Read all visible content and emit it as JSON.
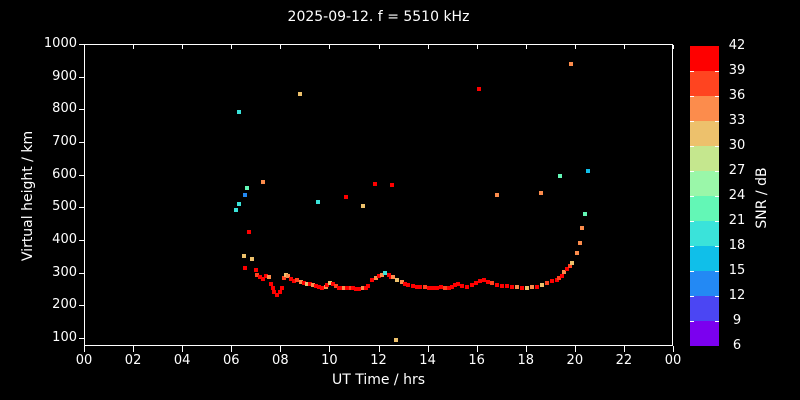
{
  "title": "2025-09-12. f = 5510 kHz",
  "chart_data": {
    "type": "scatter",
    "title": "2025-09-12. f = 5510 kHz",
    "xlabel": "UT Time / hrs",
    "ylabel": "Virtual height / km",
    "colorbar_label": "SNR / dB",
    "xlim": [
      0,
      24
    ],
    "ylim": [
      76,
      1000
    ],
    "grid": false,
    "x_tick_values": [
      0,
      2,
      4,
      6,
      8,
      10,
      12,
      14,
      16,
      18,
      20,
      22,
      24
    ],
    "x_tick_labels": [
      "00",
      "02",
      "04",
      "06",
      "08",
      "10",
      "12",
      "14",
      "16",
      "18",
      "20",
      "22",
      "00"
    ],
    "y_tick_values": [
      100,
      200,
      300,
      400,
      500,
      600,
      700,
      800,
      900,
      1000
    ],
    "y_tick_labels": [
      "100",
      "200",
      "300",
      "400",
      "500",
      "600",
      "700",
      "800",
      "900",
      "1000"
    ],
    "colorbar": {
      "min": 6,
      "max": 42,
      "step": 3,
      "tick_labels": [
        42,
        39,
        36,
        33,
        30,
        27,
        24,
        21,
        18,
        15,
        12,
        9,
        6
      ],
      "band_colors_low_to_high": [
        "#7b00ef",
        "#4b46f3",
        "#2389f4",
        "#10bfe9",
        "#3ae3da",
        "#63f7b6",
        "#9af7a9",
        "#c5e78e",
        "#edc16c",
        "#fc8c4c",
        "#ff4420",
        "#fe0000"
      ]
    },
    "points_format": [
      "ut_time_hrs",
      "virtual_height_km",
      "snr_db"
    ],
    "points": [
      [
        6.16,
        496,
        19
      ],
      [
        6.29,
        514,
        19
      ],
      [
        6.29,
        795,
        19
      ],
      [
        6.49,
        355,
        31
      ],
      [
        6.53,
        318,
        41
      ],
      [
        6.53,
        542,
        13
      ],
      [
        6.61,
        563,
        22
      ],
      [
        6.69,
        428,
        41
      ],
      [
        6.82,
        346,
        31
      ],
      [
        6.98,
        312,
        41
      ],
      [
        7.02,
        297,
        37
      ],
      [
        7.14,
        291,
        41
      ],
      [
        7.27,
        285,
        41
      ],
      [
        7.27,
        581,
        34
      ],
      [
        7.39,
        294,
        41
      ],
      [
        7.51,
        291,
        34
      ],
      [
        7.59,
        269,
        41
      ],
      [
        7.67,
        257,
        41
      ],
      [
        7.71,
        245,
        41
      ],
      [
        7.84,
        236,
        41
      ],
      [
        7.96,
        245,
        41
      ],
      [
        8.04,
        257,
        41
      ],
      [
        8.12,
        288,
        37
      ],
      [
        8.2,
        297,
        31
      ],
      [
        8.29,
        294,
        34
      ],
      [
        8.41,
        285,
        41
      ],
      [
        8.53,
        279,
        41
      ],
      [
        8.65,
        282,
        37
      ],
      [
        8.78,
        850,
        31
      ],
      [
        8.82,
        276,
        34
      ],
      [
        8.94,
        273,
        41
      ],
      [
        9.06,
        270,
        31
      ],
      [
        9.18,
        270,
        41
      ],
      [
        9.31,
        267,
        34
      ],
      [
        9.43,
        264,
        41
      ],
      [
        9.51,
        520,
        19
      ],
      [
        9.55,
        261,
        41
      ],
      [
        9.67,
        258,
        41
      ],
      [
        9.8,
        261,
        34
      ],
      [
        9.88,
        267,
        41
      ],
      [
        10.0,
        273,
        31
      ],
      [
        10.12,
        270,
        41
      ],
      [
        10.24,
        264,
        37
      ],
      [
        10.37,
        258,
        41
      ],
      [
        10.45,
        255,
        41
      ],
      [
        10.57,
        255,
        34
      ],
      [
        10.65,
        536,
        41
      ],
      [
        10.69,
        255,
        41
      ],
      [
        10.82,
        258,
        37
      ],
      [
        10.94,
        255,
        41
      ],
      [
        11.06,
        252,
        41
      ],
      [
        11.18,
        252,
        41
      ],
      [
        11.31,
        255,
        34
      ],
      [
        11.31,
        508,
        31
      ],
      [
        11.43,
        258,
        41
      ],
      [
        11.55,
        264,
        41
      ],
      [
        11.71,
        282,
        41
      ],
      [
        11.8,
        575,
        41
      ],
      [
        11.84,
        288,
        34
      ],
      [
        11.96,
        294,
        41
      ],
      [
        12.12,
        297,
        34
      ],
      [
        12.24,
        303,
        19
      ],
      [
        12.37,
        297,
        41
      ],
      [
        12.45,
        291,
        41
      ],
      [
        12.49,
        572,
        41
      ],
      [
        12.57,
        291,
        34
      ],
      [
        12.69,
        98,
        31
      ],
      [
        12.73,
        282,
        31
      ],
      [
        12.9,
        276,
        34
      ],
      [
        13.02,
        270,
        41
      ],
      [
        13.18,
        267,
        41
      ],
      [
        13.35,
        264,
        41
      ],
      [
        13.51,
        261,
        41
      ],
      [
        13.67,
        261,
        41
      ],
      [
        13.84,
        261,
        37
      ],
      [
        14.0,
        258,
        41
      ],
      [
        14.16,
        258,
        41
      ],
      [
        14.33,
        258,
        41
      ],
      [
        14.49,
        261,
        41
      ],
      [
        14.65,
        258,
        37
      ],
      [
        14.82,
        258,
        41
      ],
      [
        14.94,
        261,
        41
      ],
      [
        15.06,
        267,
        41
      ],
      [
        15.18,
        270,
        41
      ],
      [
        15.35,
        264,
        41
      ],
      [
        15.55,
        261,
        41
      ],
      [
        15.76,
        267,
        41
      ],
      [
        15.92,
        273,
        41
      ],
      [
        16.04,
        866,
        41
      ],
      [
        16.08,
        279,
        41
      ],
      [
        16.24,
        282,
        41
      ],
      [
        16.41,
        276,
        41
      ],
      [
        16.57,
        273,
        37
      ],
      [
        16.78,
        267,
        41
      ],
      [
        16.78,
        542,
        34
      ],
      [
        16.98,
        264,
        41
      ],
      [
        17.18,
        264,
        41
      ],
      [
        17.39,
        261,
        41
      ],
      [
        17.59,
        261,
        34
      ],
      [
        17.8,
        258,
        41
      ],
      [
        18.0,
        258,
        31
      ],
      [
        18.2,
        261,
        34
      ],
      [
        18.41,
        261,
        41
      ],
      [
        18.57,
        548,
        34
      ],
      [
        18.61,
        267,
        31
      ],
      [
        18.82,
        273,
        37
      ],
      [
        19.02,
        279,
        41
      ],
      [
        19.22,
        282,
        41
      ],
      [
        19.31,
        288,
        37
      ],
      [
        19.35,
        600,
        22
      ],
      [
        19.43,
        294,
        41
      ],
      [
        19.51,
        306,
        34
      ],
      [
        19.63,
        315,
        41
      ],
      [
        19.76,
        325,
        37
      ],
      [
        19.8,
        942,
        34
      ],
      [
        19.84,
        334,
        31
      ],
      [
        20.04,
        364,
        34
      ],
      [
        20.16,
        395,
        34
      ],
      [
        20.24,
        441,
        34
      ],
      [
        20.37,
        484,
        22
      ],
      [
        20.49,
        615,
        16
      ]
    ]
  }
}
